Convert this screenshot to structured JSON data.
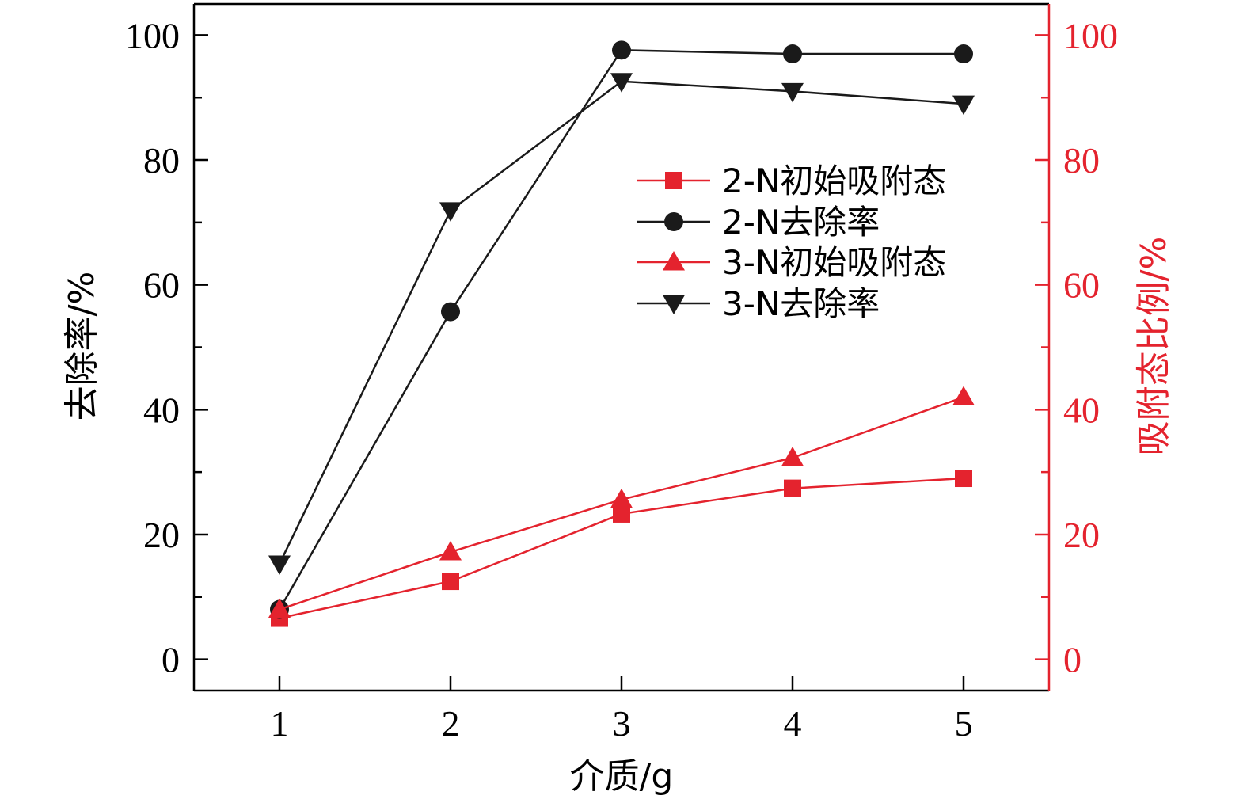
{
  "colors": {
    "left_axis": "#000000",
    "right_axis": "#e4232e",
    "black_series": "#1a1a1a",
    "red_series": "#e4232e"
  },
  "chart_data": {
    "type": "line",
    "x": [
      1,
      2,
      3,
      4,
      5
    ],
    "xlabel": "介质/g",
    "ylabel": "去除率/%",
    "y2label": "吸附态比例/%",
    "xlim": [
      0.5,
      5.5
    ],
    "ylim": [
      -5,
      105
    ],
    "y2lim": [
      -5,
      105
    ],
    "xticks": [
      1,
      2,
      3,
      4,
      5
    ],
    "yticks": [
      0,
      20,
      40,
      60,
      80,
      100
    ],
    "y2ticks": [
      0,
      20,
      40,
      60,
      80,
      100
    ],
    "legend_position": "upper-right-inside",
    "grid": false,
    "series": [
      {
        "name": "2-N初始吸附态",
        "axis": "right",
        "marker": "square",
        "color": "#e4232e",
        "values": [
          6.6,
          12.5,
          23.3,
          27.4,
          29.0
        ]
      },
      {
        "name": "2-N去除率",
        "axis": "left",
        "marker": "circle",
        "color": "#1a1a1a",
        "values": [
          8.0,
          55.7,
          97.6,
          97.0,
          97.0
        ]
      },
      {
        "name": "3-N初始吸附态",
        "axis": "right",
        "marker": "triangle-up",
        "color": "#e4232e",
        "values": [
          8.0,
          17.2,
          25.6,
          32.3,
          42.0
        ]
      },
      {
        "name": "3-N去除率",
        "axis": "left",
        "marker": "triangle-down",
        "color": "#1a1a1a",
        "values": [
          15.3,
          71.9,
          92.6,
          91.0,
          89.0
        ]
      }
    ]
  }
}
